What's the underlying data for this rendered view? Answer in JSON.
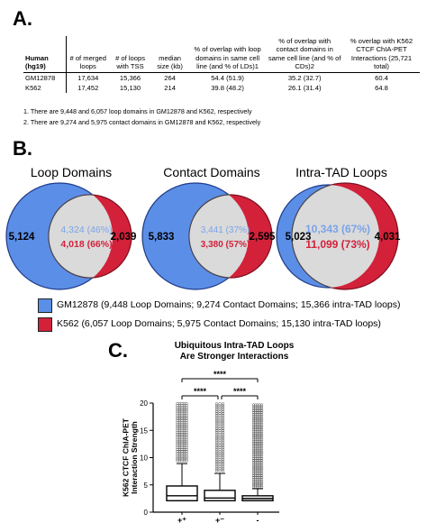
{
  "panelA": {
    "letter": "A.",
    "headers": [
      "Human (hg19)",
      "# of merged loops",
      "# of loops with TSS",
      "median size (kb)",
      "% of overlap with loop domains in same cell line (and % of LDs)1",
      "% of overlap with contact domains in same cell line (and % of CDs)2",
      "% overlap with K562 CTCF ChIA-PET Interactions (25,721 total)"
    ],
    "rows": [
      [
        "GM12878",
        "17,634",
        "15,366",
        "264",
        "54.4 (51.9)",
        "35.2 (32.7)",
        "60.4"
      ],
      [
        "K562",
        "17,452",
        "15,130",
        "214",
        "39.8 (48.2)",
        "26.1 (31.4)",
        "64.8"
      ]
    ],
    "footnotes": [
      "1. There are 9,448 and 6,057 loop domains in GM12878 and K562, respectively",
      "2. There are 9,274 and 5,975 contact domains in GM12878 and K562, respectively"
    ]
  },
  "panelB": {
    "letter": "B.",
    "venns": [
      {
        "title": "Loop Domains",
        "left": "5,124",
        "overlap_blue": "4,324 (46%)",
        "overlap_red": "4,018 (66%)",
        "right": "2,039"
      },
      {
        "title": "Contact Domains",
        "left": "5,833",
        "overlap_blue": "3,441 (37%)",
        "overlap_red": "3,380 (57%)",
        "right": "2,595"
      },
      {
        "title": "Intra-TAD Loops",
        "left": "5,023",
        "overlap_blue": "10,343 (67%)",
        "overlap_red": "11,099 (73%)",
        "right": "4,031"
      }
    ],
    "legend": [
      {
        "label": "GM12878 (9,448 Loop Domains; 9,274 Contact Domains; 15,366 intra-TAD loops)",
        "color": "#5b8ee6"
      },
      {
        "label": "K562 (6,057 Loop Domains; 5,975 Contact Domains; 15,130 intra-TAD loops)",
        "color": "#d3213a"
      }
    ],
    "colors": {
      "blue": "#5b8ee6",
      "red": "#d3213a",
      "overlap": "#dadada",
      "blue_text": "#7aa3ea",
      "red_text": "#d3213a"
    }
  },
  "panelC": {
    "letter": "C.",
    "title_line1": "Ubiquitous Intra-TAD Loops",
    "title_line2": "Are Stronger Interactions",
    "significance": "****"
  },
  "chart_data": {
    "type": "box",
    "title": "Ubiquitous Intra-TAD Loops Are Stronger Interactions",
    "ylabel": "K562 CTCF ChIA-PET Interaction Strength",
    "ylim": [
      0,
      20
    ],
    "yticks": [
      0,
      5,
      10,
      15,
      20
    ],
    "categories": [
      "+⁺",
      "+⁻",
      "-"
    ],
    "boxes": [
      {
        "whisker_low": 2,
        "q1": 2.1,
        "median": 3.0,
        "q3": 4.8,
        "whisker_high": 8.9,
        "outliers_from": 9.4,
        "outliers_to": 20
      },
      {
        "whisker_low": 2,
        "q1": 2.1,
        "median": 2.6,
        "q3": 4.0,
        "whisker_high": 7.1,
        "outliers_from": 7.6,
        "outliers_to": 20
      },
      {
        "whisker_low": 2,
        "q1": 2.1,
        "median": 2.5,
        "q3": 3.0,
        "whisker_high": 4.3,
        "outliers_from": 4.6,
        "outliers_to": 20
      }
    ],
    "comparisons": [
      {
        "pair": [
          "+⁺",
          "-"
        ],
        "label": "****"
      },
      {
        "pair": [
          "+⁺",
          "+⁻"
        ],
        "label": "****"
      },
      {
        "pair": [
          "+⁻",
          "-"
        ],
        "label": "****"
      }
    ]
  }
}
